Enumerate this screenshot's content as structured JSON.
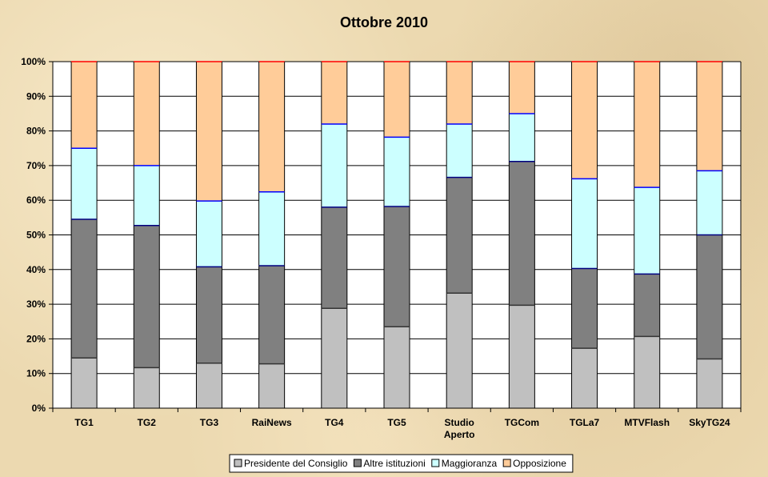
{
  "chart_data": {
    "type": "bar",
    "stacked": true,
    "percent": true,
    "title": "Ottobre 2010",
    "xlabel": "",
    "ylabel": "",
    "ylim": [
      0,
      100
    ],
    "yticks": [
      "0%",
      "10%",
      "20%",
      "30%",
      "40%",
      "50%",
      "60%",
      "70%",
      "80%",
      "90%",
      "100%"
    ],
    "categories": [
      [
        "TG1"
      ],
      [
        "TG2"
      ],
      [
        "TG3"
      ],
      [
        "RaiNews"
      ],
      [
        "TG4"
      ],
      [
        "TG5"
      ],
      [
        "Studio",
        "Aperto"
      ],
      [
        "TGCom"
      ],
      [
        "TGLa7"
      ],
      [
        "MTVFlash"
      ],
      [
        "SkyTG24"
      ]
    ],
    "series": [
      {
        "name": "Presidente del Consiglio",
        "color": "#c0c0c0",
        "values": [
          14.5,
          11.7,
          13.0,
          12.8,
          28.8,
          23.5,
          33.2,
          29.7,
          17.3,
          20.7,
          14.2
        ]
      },
      {
        "name": "Altre istituzioni",
        "color": "#808080",
        "values": [
          40.0,
          41.0,
          27.8,
          28.3,
          29.2,
          34.7,
          33.4,
          41.5,
          23.0,
          18.0,
          35.8
        ]
      },
      {
        "name": "Maggioranza",
        "color": "#ccffff",
        "values": [
          20.5,
          17.3,
          19.0,
          21.3,
          24.0,
          20.0,
          15.4,
          13.8,
          25.9,
          25.0,
          18.5
        ]
      },
      {
        "name": "Opposizione",
        "color": "#ffcc99",
        "values": [
          25.0,
          30.0,
          40.2,
          37.6,
          18.0,
          21.8,
          18.0,
          15.0,
          33.8,
          36.3,
          31.5
        ]
      }
    ],
    "grid": true,
    "legend_position": "bottom"
  }
}
